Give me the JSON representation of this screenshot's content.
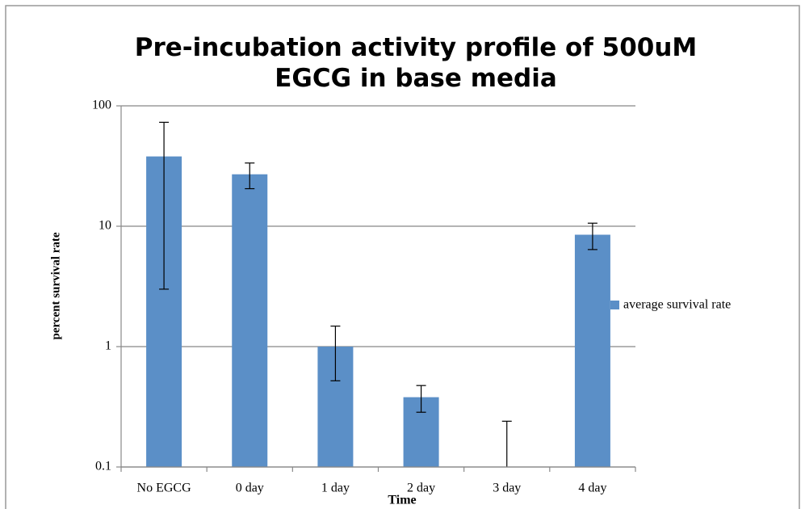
{
  "chart_data": {
    "type": "bar",
    "title": "Pre-incubation activity profile of 500uM EGCG in base media",
    "x_label": "Time",
    "y_label": "percent survival rate",
    "categories": [
      "No EGCG",
      "0 day",
      "1 day",
      "2 day",
      "3 day",
      "4 day"
    ],
    "series": [
      {
        "name": "average survival rate",
        "color": "#5b8fc7",
        "values": [
          38,
          27,
          1.0,
          0.38,
          0,
          8.5
        ],
        "errors": [
          35,
          6.5,
          0.48,
          0.095,
          0.24,
          2.1
        ]
      }
    ],
    "ylim": [
      0.1,
      100
    ],
    "yticks": [
      0.1,
      1,
      10,
      100
    ],
    "log_y": true,
    "grid": true,
    "legend": "right"
  }
}
